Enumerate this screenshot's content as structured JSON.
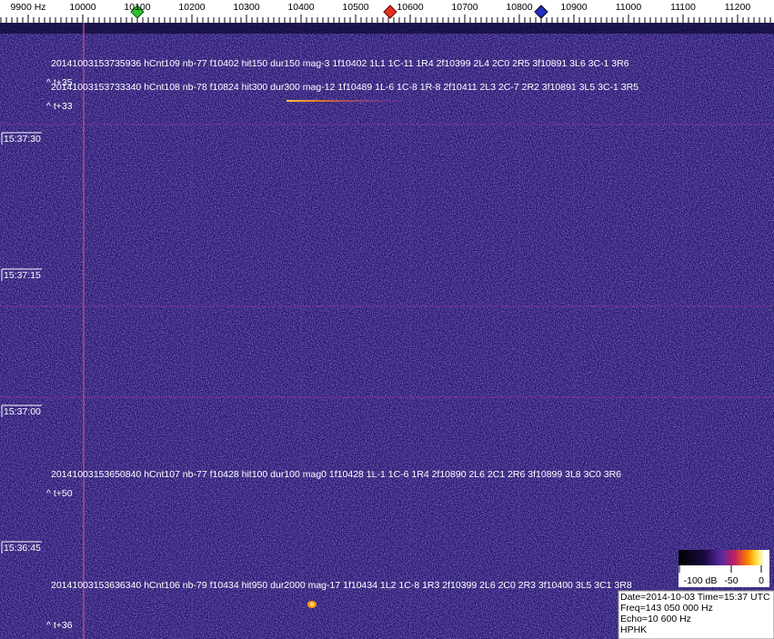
{
  "frequency_axis": {
    "ticks": [
      "9900 Hz",
      "10000",
      "10100",
      "10200",
      "10300",
      "10400",
      "10500",
      "10600",
      "10700",
      "10800",
      "10900",
      "11000",
      "11100",
      "11200"
    ]
  },
  "time_labels": [
    "15:37:30",
    "15:37:15",
    "15:37:00",
    "15:36:45"
  ],
  "events": [
    {
      "text": "20141003153735936 hCnt109 nb-77 f10402 hit150 dur150 mag-3 1f10402 1L1 1C-11 1R4 2f10399 2L4 2C0 2R5 3f10891 3L6 3C-1 3R6",
      "offset": "^ t+35"
    },
    {
      "text": "20141003153733340 hCnt108 nb-78 f10824 hit300 dur300 mag-12 1f10489 1L-6 1C-8 1R-8 2f10411 2L3 2C-7 2R2 3f10891 3L5 3C-1 3R5",
      "offset": "^ t+33"
    },
    {
      "text": "20141003153650840 hCnt107 nb-77 f10428 hit100 dur100 mag0 1f10428 1L-1 1C-6 1R4 2f10890 2L6 2C1 2R6 3f10899 3L8 3C0 3R6",
      "offset": "^ t+50"
    },
    {
      "text": "20141003153636340 hCnt106 nb-79 f10434 hit950 dur2000 mag-17 1f10434 1L2 1C-8 1R3 2f10399 2L6 2C0 2R3 3f10400 3L5 3C1 3R8",
      "offset": "^ t+36"
    }
  ],
  "colorbar": {
    "labels": [
      "-100 dB",
      "-50",
      "0"
    ]
  },
  "info": [
    "Date=2014-10-03 Time=15:37 UTC",
    "Freq=143 050 000 Hz",
    "Echo=10 600 Hz",
    "HPHK"
  ]
}
